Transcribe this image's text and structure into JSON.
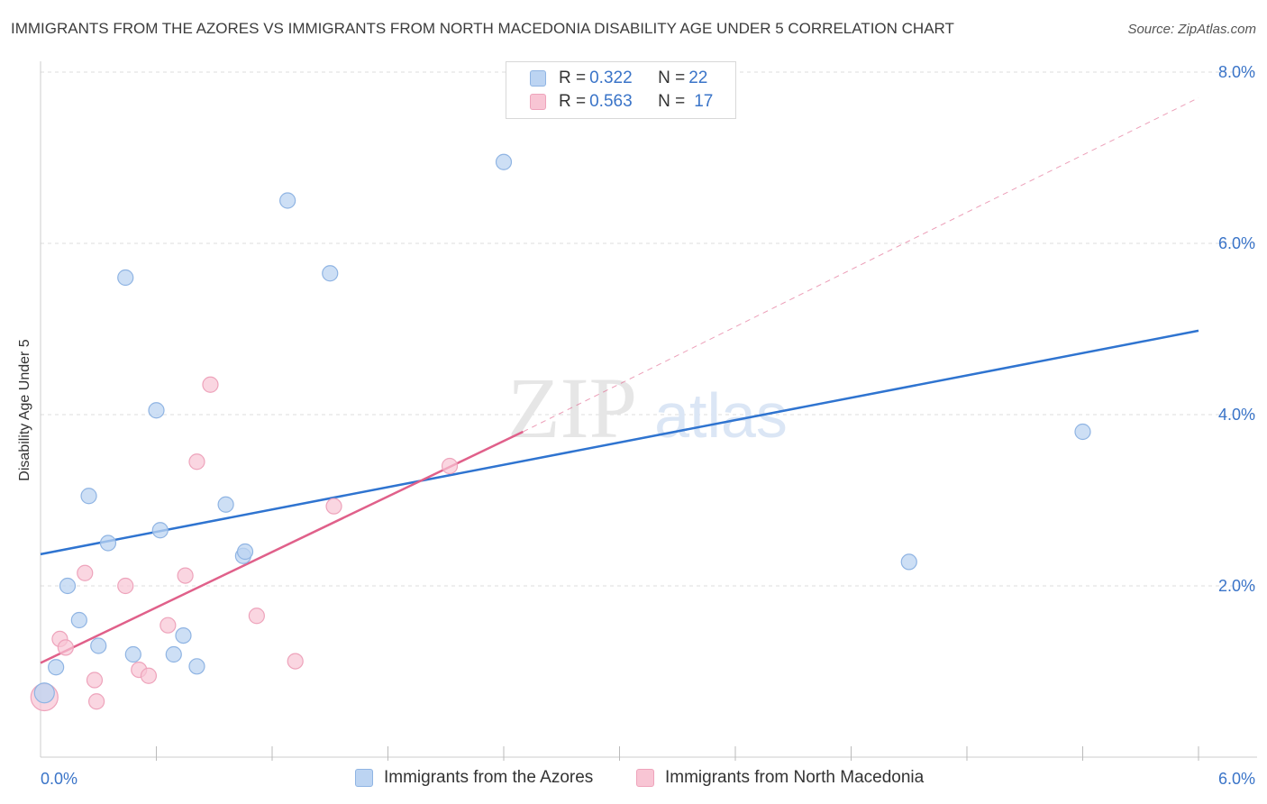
{
  "title": "IMMIGRANTS FROM THE AZORES VS IMMIGRANTS FROM NORTH MACEDONIA DISABILITY AGE UNDER 5 CORRELATION CHART",
  "source": "Source: ZipAtlas.com",
  "watermark": {
    "zip": "ZIP",
    "atlas": "atlas"
  },
  "legend": {
    "azores": {
      "r_label": "R = ",
      "r_value": "0.322",
      "n_label": "N = ",
      "n_value": "22"
    },
    "macedonia": {
      "r_label": "R = ",
      "r_value": "0.563",
      "n_label": "N = ",
      "n_value": "17"
    }
  },
  "colors": {
    "azores_fill": "#bcd4f2",
    "azores_stroke": "#8fb4e3",
    "azores_line": "#2f74d0",
    "macedonia_fill": "#f8c5d4",
    "macedonia_stroke": "#eea3bb",
    "macedonia_line": "#e0608a",
    "grid": "#dddddd",
    "tick_label": "#3a74c8"
  },
  "chart_data": {
    "type": "scatter",
    "title": "IMMIGRANTS FROM THE AZORES VS IMMIGRANTS FROM NORTH MACEDONIA DISABILITY AGE UNDER 5 CORRELATION CHART",
    "xlabel": "",
    "ylabel": "Disability Age Under 5",
    "xlim": [
      0,
      6
    ],
    "ylim": [
      0,
      8
    ],
    "x_tick_labels": [
      {
        "value": 0,
        "label": "0.0%"
      },
      {
        "value": 6,
        "label": "6.0%"
      }
    ],
    "x_minor_ticks": [
      0.6,
      1.2,
      1.8,
      2.4,
      3.0,
      3.6,
      4.2,
      4.8,
      5.4,
      6.0
    ],
    "y_ticks": [
      {
        "value": 2,
        "label": "2.0%"
      },
      {
        "value": 4,
        "label": "4.0%"
      },
      {
        "value": 6,
        "label": "6.0%"
      },
      {
        "value": 8,
        "label": "8.0%"
      }
    ],
    "series": [
      {
        "name": "Immigrants from the Azores",
        "points": [
          [
            0.02,
            0.75
          ],
          [
            0.08,
            1.05
          ],
          [
            0.14,
            2.0
          ],
          [
            0.2,
            1.6
          ],
          [
            0.25,
            3.05
          ],
          [
            0.3,
            1.3
          ],
          [
            0.35,
            2.5
          ],
          [
            0.44,
            5.6
          ],
          [
            0.48,
            1.2
          ],
          [
            0.6,
            4.05
          ],
          [
            0.62,
            2.65
          ],
          [
            0.69,
            1.2
          ],
          [
            0.74,
            1.42
          ],
          [
            0.81,
            1.06
          ],
          [
            0.96,
            2.95
          ],
          [
            1.05,
            2.35
          ],
          [
            1.06,
            2.4
          ],
          [
            1.28,
            6.5
          ],
          [
            1.5,
            5.65
          ],
          [
            2.4,
            6.95
          ],
          [
            4.5,
            2.28
          ],
          [
            5.4,
            3.8
          ]
        ],
        "trend": {
          "x0": 0,
          "y0": 2.37,
          "x1": 6,
          "y1": 4.98
        }
      },
      {
        "name": "Immigrants from North Macedonia",
        "points": [
          [
            0.02,
            0.7
          ],
          [
            0.1,
            1.38
          ],
          [
            0.13,
            1.28
          ],
          [
            0.23,
            2.15
          ],
          [
            0.28,
            0.9
          ],
          [
            0.29,
            0.65
          ],
          [
            0.44,
            2.0
          ],
          [
            0.51,
            1.02
          ],
          [
            0.56,
            0.95
          ],
          [
            0.66,
            1.54
          ],
          [
            0.75,
            2.12
          ],
          [
            0.81,
            3.45
          ],
          [
            0.88,
            4.35
          ],
          [
            1.12,
            1.65
          ],
          [
            1.32,
            1.12
          ],
          [
            1.52,
            2.93
          ],
          [
            2.12,
            3.4
          ]
        ],
        "trend": {
          "x0": 0,
          "y0": 1.1,
          "x1": 2.5,
          "y1": 3.8
        },
        "trend_extension": {
          "x0": 2.5,
          "y0": 3.8,
          "x1": 6,
          "y1": 7.7
        }
      }
    ],
    "legend": [
      {
        "name": "Immigrants from the Azores",
        "r": 0.322,
        "n": 22
      },
      {
        "name": "Immigrants from North Macedonia",
        "r": 0.563,
        "n": 17
      }
    ]
  }
}
